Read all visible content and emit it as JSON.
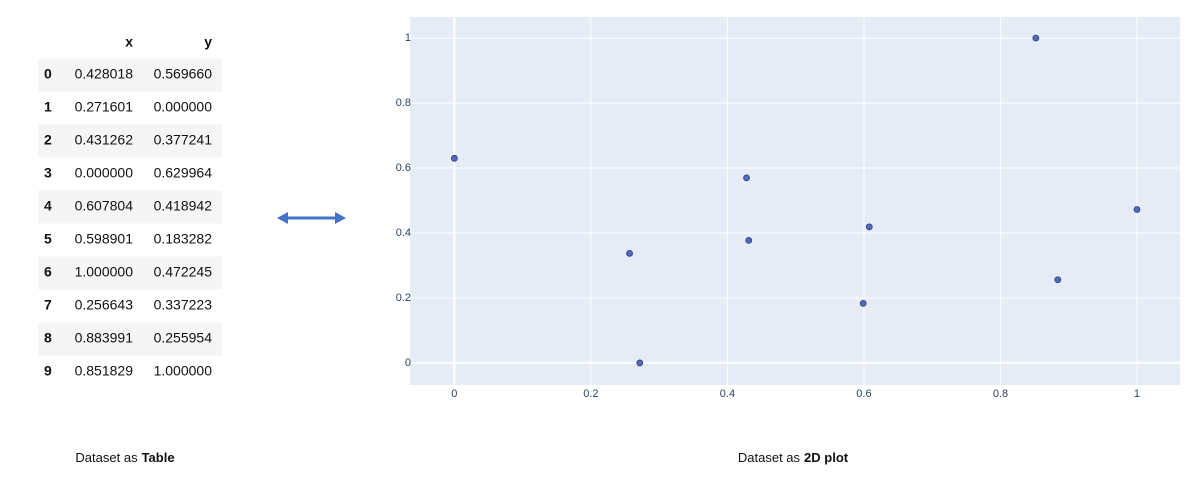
{
  "table": {
    "columns": [
      "x",
      "y"
    ],
    "rows": [
      {
        "index": "0",
        "cells": [
          "0.428018",
          "0.569660"
        ]
      },
      {
        "index": "1",
        "cells": [
          "0.271601",
          "0.000000"
        ]
      },
      {
        "index": "2",
        "cells": [
          "0.431262",
          "0.377241"
        ]
      },
      {
        "index": "3",
        "cells": [
          "0.000000",
          "0.629964"
        ]
      },
      {
        "index": "4",
        "cells": [
          "0.607804",
          "0.418942"
        ]
      },
      {
        "index": "5",
        "cells": [
          "0.598901",
          "0.183282"
        ]
      },
      {
        "index": "6",
        "cells": [
          "1.000000",
          "0.472245"
        ]
      },
      {
        "index": "7",
        "cells": [
          "0.256643",
          "0.337223"
        ]
      },
      {
        "index": "8",
        "cells": [
          "0.883991",
          "0.255954"
        ]
      },
      {
        "index": "9",
        "cells": [
          "0.851829",
          "1.000000"
        ]
      }
    ]
  },
  "chart_data": {
    "type": "scatter",
    "x": [
      0.428018,
      0.271601,
      0.431262,
      0.0,
      0.607804,
      0.598901,
      1.0,
      0.256643,
      0.883991,
      0.851829
    ],
    "values": [
      0.56966,
      0.0,
      0.377241,
      0.629964,
      0.418942,
      0.183282,
      0.472245,
      0.337223,
      0.255954,
      1.0
    ],
    "color": "#5468b4",
    "xlim": [
      -0.065,
      1.063
    ],
    "ylim": [
      -0.068,
      1.065
    ],
    "xticks": [
      0,
      0.2,
      0.4,
      0.6,
      0.8,
      1
    ],
    "yticks": [
      0,
      0.2,
      0.4,
      0.6,
      0.8,
      1
    ],
    "grid": true
  },
  "captions": [
    {
      "text": "Dataset as",
      "emphasis": "Table"
    },
    {
      "text": "Dataset as",
      "emphasis": "2D plot"
    }
  ]
}
